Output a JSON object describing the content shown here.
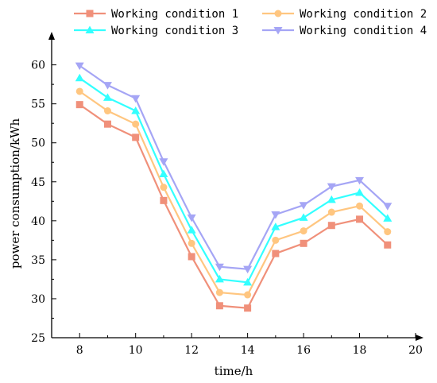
{
  "chart_data": {
    "type": "line",
    "xlabel": "time/h",
    "ylabel": "power consumption/kWh",
    "xlim": [
      7,
      20
    ],
    "ylim": [
      25,
      62
    ],
    "xticks": [
      8,
      10,
      12,
      14,
      16,
      18,
      20
    ],
    "yticks": [
      25,
      30,
      35,
      40,
      45,
      50,
      55,
      60
    ],
    "grid": false,
    "legend_position": "top",
    "x": [
      8,
      9,
      10,
      11,
      12,
      13,
      14,
      15,
      16,
      17,
      18,
      19
    ],
    "series": [
      {
        "name": "Working condition 1",
        "color": "#f0907a",
        "marker": "square",
        "values": [
          54.9,
          52.4,
          50.7,
          42.6,
          35.4,
          29.1,
          28.8,
          35.8,
          37.1,
          39.4,
          40.2,
          36.9
        ]
      },
      {
        "name": "Working condition 2",
        "color": "#ffc680",
        "marker": "circle",
        "values": [
          56.6,
          54.1,
          52.4,
          44.3,
          37.1,
          30.8,
          30.5,
          37.5,
          38.7,
          41.1,
          41.9,
          38.6
        ]
      },
      {
        "name": "Working condition 3",
        "color": "#33ffff",
        "marker": "triangle-up",
        "values": [
          58.3,
          55.8,
          54.1,
          46.0,
          38.8,
          32.5,
          32.1,
          39.2,
          40.4,
          42.7,
          43.6,
          40.3
        ]
      },
      {
        "name": "Working condition 4",
        "color": "#a5a5f5",
        "marker": "triangle-down",
        "values": [
          59.9,
          57.4,
          55.7,
          47.6,
          40.4,
          34.1,
          33.8,
          40.8,
          42.0,
          44.4,
          45.2,
          41.9
        ]
      }
    ]
  }
}
